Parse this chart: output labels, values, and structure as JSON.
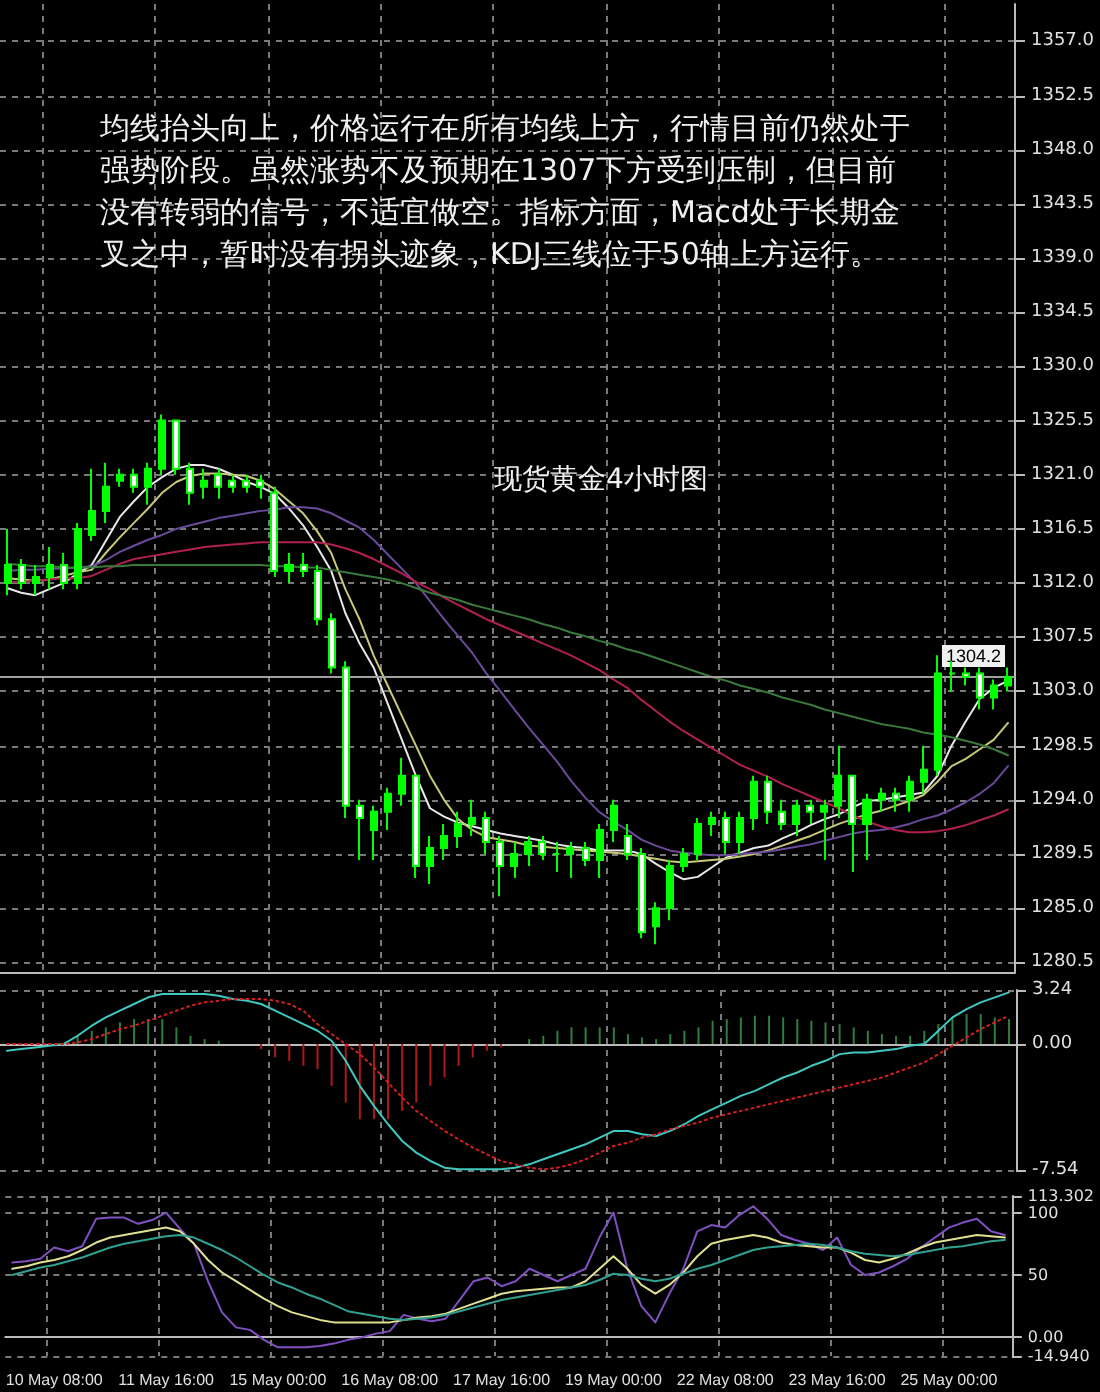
{
  "chart_data": [
    {
      "type": "candlestick",
      "title": "现货黄金4小时图",
      "annotations": [
        "均线抬头向上，价格运行在所有均线上方，行情目前仍然处于强势阶段。虽然涨势不及预期在1307下方受到压制，但目前没有转弱的信号，不适宜做空。指标方面，Macd处于长期金叉之中，暂时没有拐头迹象，KDJ三线位于50轴上方运行。"
      ],
      "categories": [
        null,
        null,
        null,
        null,
        null,
        null,
        null,
        null,
        null,
        null,
        null,
        null,
        null,
        null,
        null,
        null,
        null,
        null,
        null,
        null,
        null,
        null,
        null,
        null,
        null,
        null,
        null,
        null,
        null,
        null,
        null,
        null,
        null,
        null,
        null,
        null,
        null,
        null,
        null,
        null,
        null,
        null,
        null,
        null,
        null,
        null,
        null,
        null,
        null,
        null,
        null,
        null,
        null,
        null,
        null,
        null,
        null,
        null,
        null,
        null,
        null,
        null,
        null,
        null,
        null,
        null,
        null,
        null,
        null,
        null,
        null,
        null
      ],
      "color": "#00ff00",
      "ohlc": [
        [
          1312,
          1316.5,
          1311,
          1313.5
        ],
        [
          1313.5,
          1314,
          1311.5,
          1312
        ],
        [
          1312,
          1313.5,
          1311,
          1312.5
        ],
        [
          1312.5,
          1315,
          1311.5,
          1313.5
        ],
        [
          1313.5,
          1314.5,
          1311.5,
          1312
        ],
        [
          1312,
          1317,
          1311.5,
          1316.5
        ],
        [
          1316,
          1321.5,
          1315.5,
          1318
        ],
        [
          1318,
          1322,
          1317,
          1320
        ],
        [
          1320.5,
          1321.5,
          1320,
          1321
        ],
        [
          1321,
          1321.5,
          1319.5,
          1320
        ],
        [
          1320,
          1322,
          1318.5,
          1321.5
        ],
        [
          1321.5,
          1326,
          1321,
          1325.5
        ],
        [
          1325.5,
          1325.5,
          1321,
          1321.5
        ],
        [
          1321.5,
          1322,
          1318.5,
          1319.5
        ],
        [
          1320,
          1321.5,
          1319,
          1320.5
        ],
        [
          1321,
          1321.5,
          1319,
          1320
        ],
        [
          1320.5,
          1321,
          1319.5,
          1320
        ],
        [
          1320.5,
          1321,
          1319.5,
          1320
        ],
        [
          1320.5,
          1321,
          1319,
          1320
        ],
        [
          1319.5,
          1320,
          1312.5,
          1313
        ],
        [
          1313,
          1314.5,
          1312,
          1313.5
        ],
        [
          1313.5,
          1314.5,
          1312.5,
          1313
        ],
        [
          1313,
          1313.5,
          1308.5,
          1309
        ],
        [
          1309,
          1309.5,
          1304.5,
          1305
        ],
        [
          1305,
          1305.5,
          1292.5,
          1293.5
        ],
        [
          1293.5,
          1294,
          1289,
          1292.5
        ],
        [
          1291.5,
          1293.5,
          1289,
          1293
        ],
        [
          1293,
          1295,
          1291.5,
          1294.5
        ],
        [
          1294.5,
          1297.5,
          1293.5,
          1296
        ],
        [
          1296,
          1296,
          1287.5,
          1288.5
        ],
        [
          1288.5,
          1291,
          1287,
          1290
        ],
        [
          1290,
          1292,
          1289,
          1291
        ],
        [
          1291,
          1293,
          1290,
          1292
        ],
        [
          1292,
          1294,
          1291,
          1292.5
        ],
        [
          1292.5,
          1293,
          1289.5,
          1290.5
        ],
        [
          1290.5,
          1291,
          1286,
          1288.5
        ],
        [
          1288.5,
          1290.5,
          1287.5,
          1289.5
        ],
        [
          1289.5,
          1291,
          1288.5,
          1290.5
        ],
        [
          1290.5,
          1291,
          1289,
          1289.5
        ],
        [
          1289.5,
          1290.5,
          1288,
          1289.5
        ],
        [
          1289.5,
          1290.5,
          1287.5,
          1290
        ],
        [
          1290,
          1290.5,
          1288.5,
          1289
        ],
        [
          1289,
          1292,
          1287.5,
          1291.5
        ],
        [
          1291.5,
          1294,
          1290.5,
          1293.5
        ],
        [
          1291,
          1292,
          1289,
          1289.5
        ],
        [
          1289.5,
          1290,
          1282.5,
          1283
        ],
        [
          1283.5,
          1285.5,
          1282,
          1285
        ],
        [
          1285,
          1289,
          1284,
          1288.5
        ],
        [
          1288.5,
          1290,
          1288,
          1289.5
        ],
        [
          1289.5,
          1292.5,
          1289,
          1292
        ],
        [
          1292,
          1293,
          1291,
          1292.5
        ],
        [
          1292.5,
          1293,
          1289.5,
          1290.5
        ],
        [
          1290.5,
          1293,
          1289.5,
          1292.5
        ],
        [
          1292.5,
          1296,
          1291.5,
          1295.5
        ],
        [
          1295.5,
          1296,
          1292,
          1293
        ],
        [
          1293,
          1294,
          1291.5,
          1292
        ],
        [
          1292,
          1294,
          1291,
          1293.5
        ],
        [
          1293.5,
          1294,
          1292,
          1293
        ],
        [
          1293,
          1294,
          1289,
          1293.5
        ],
        [
          1293.5,
          1298.5,
          1292.5,
          1296
        ],
        [
          1296,
          1296,
          1288,
          1292
        ],
        [
          1292,
          1294.5,
          1289,
          1294
        ],
        [
          1294,
          1295,
          1293,
          1294.5
        ],
        [
          1294.5,
          1295,
          1293,
          1294
        ],
        [
          1294,
          1296,
          1293,
          1295.5
        ],
        [
          1295.5,
          1298.5,
          1294.5,
          1296.5
        ],
        [
          1296.5,
          1306,
          1296,
          1304.5
        ],
        [
          1304.5,
          1305.5,
          1303,
          1304.5
        ],
        [
          1304.5,
          1305,
          1303.5,
          1304.2
        ],
        [
          1304.5,
          1305,
          1301.5,
          1302.5
        ],
        [
          1302.5,
          1304,
          1301.5,
          1303.5
        ],
        [
          1303.5,
          1305,
          1303,
          1304.2
        ]
      ],
      "series": [
        {
          "type": "line",
          "color": "#e8e8e8",
          "values": [
            1311.6,
            1311.2,
            1311,
            1311.5,
            1312,
            1312.8,
            1313.5,
            1315.5,
            1317.5,
            1318.8,
            1320,
            1320.8,
            1321.5,
            1321.8,
            1321.8,
            1321.5,
            1321,
            1320.4,
            1320,
            1319.4,
            1318.2,
            1316.8,
            1315,
            1313,
            1309.5,
            1307,
            1305,
            1302,
            1299,
            1296,
            1293.3,
            1292.6,
            1292.1,
            1291.8,
            1291.5,
            1291.2,
            1291,
            1290.8,
            1290.6,
            1290.3,
            1290.1,
            1290,
            1289.8,
            1289.8,
            1289.8,
            1289.5,
            1288.7,
            1288,
            1287.4,
            1287.6,
            1288.4,
            1289.2,
            1289.6,
            1290,
            1290.2,
            1290.8,
            1291.3,
            1291.9,
            1292.4,
            1292.8,
            1293.4,
            1293.9,
            1294,
            1294.2,
            1294.4,
            1294.6,
            1296,
            1298.5,
            1300.5,
            1302.4,
            1303.3,
            1303.9
          ]
        },
        {
          "type": "line",
          "color": "#c8c878",
          "values": [
            1312.4,
            1312.3,
            1312.2,
            1312.3,
            1312.6,
            1312.9,
            1313.1,
            1314.5,
            1315.8,
            1317,
            1318.2,
            1319.5,
            1320.4,
            1320.9,
            1321.1,
            1321.1,
            1321,
            1320.9,
            1320.5,
            1319.8,
            1318.8,
            1317.8,
            1316.3,
            1314.5,
            1311.5,
            1309,
            1306,
            1303.5,
            1301,
            1298.5,
            1296,
            1294,
            1292.4,
            1291.5,
            1290.9,
            1290.7,
            1290.5,
            1290.2,
            1290.1,
            1290,
            1289.9,
            1289.8,
            1289.7,
            1289.6,
            1289.5,
            1289.3,
            1289.1,
            1288.9,
            1288.8,
            1288.9,
            1289,
            1289.1,
            1289.3,
            1289.5,
            1289.8,
            1290.2,
            1290.6,
            1291,
            1291.5,
            1292,
            1292.4,
            1292.8,
            1293.1,
            1293.5,
            1293.9,
            1294.4,
            1295.5,
            1296.8,
            1297.4,
            1298.2,
            1299,
            1300.4
          ]
        },
        {
          "type": "line",
          "color": "#6a4a9a",
          "values": [
            1313,
            1313.1,
            1313.1,
            1313.2,
            1313.2,
            1313.3,
            1313.4,
            1313.9,
            1314.6,
            1315.1,
            1315.6,
            1316,
            1316.5,
            1316.8,
            1317.1,
            1317.4,
            1317.6,
            1317.8,
            1318,
            1318.1,
            1318.3,
            1318.3,
            1318.2,
            1317.8,
            1317.2,
            1316.6,
            1315.6,
            1314.4,
            1313.2,
            1312,
            1310.5,
            1309,
            1307.6,
            1306.2,
            1304.5,
            1303,
            1301.5,
            1300,
            1298.6,
            1297.2,
            1295.6,
            1294.2,
            1293,
            1292.2,
            1291.5,
            1290.7,
            1290.2,
            1289.8,
            1289.6,
            1289.5,
            1289.4,
            1289.4,
            1289.5,
            1289.6,
            1289.7,
            1289.9,
            1290.1,
            1290.3,
            1290.6,
            1290.9,
            1291.2,
            1291.4,
            1291.5,
            1291.7,
            1292,
            1292.4,
            1292.7,
            1293.2,
            1293.8,
            1294.5,
            1295.4,
            1296.8
          ]
        },
        {
          "type": "line",
          "color": "#b02050",
          "values": [
            1312.1,
            1312.1,
            1312.2,
            1312.3,
            1312.4,
            1312.4,
            1312.6,
            1313.1,
            1313.6,
            1314,
            1314.2,
            1314.4,
            1314.6,
            1314.8,
            1315,
            1315.1,
            1315.2,
            1315.3,
            1315.4,
            1315.4,
            1315.4,
            1315.4,
            1315.4,
            1315.2,
            1314.9,
            1314.5,
            1314,
            1313.4,
            1312.8,
            1312.1,
            1311.5,
            1310.8,
            1310.2,
            1309.6,
            1309,
            1308.5,
            1308,
            1307.5,
            1307,
            1306.5,
            1306,
            1305.4,
            1304.8,
            1304,
            1303.3,
            1302.3,
            1301.4,
            1300.5,
            1299.7,
            1299,
            1298.3,
            1297.6,
            1296.9,
            1296.4,
            1295.9,
            1295.3,
            1294.8,
            1294.3,
            1293.8,
            1293.3,
            1292.7,
            1292.2,
            1291.8,
            1291.5,
            1291.3,
            1291.3,
            1291.4,
            1291.6,
            1291.9,
            1292.3,
            1292.7,
            1293.2
          ]
        },
        {
          "type": "line",
          "color": "#3a7a3a",
          "values": [
            1313.6,
            1313.5,
            1313.4,
            1313.4,
            1313.3,
            1313.3,
            1313.3,
            1313.4,
            1313.4,
            1313.5,
            1313.5,
            1313.5,
            1313.5,
            1313.5,
            1313.5,
            1313.5,
            1313.5,
            1313.5,
            1313.5,
            1313.4,
            1313.4,
            1313.3,
            1313.3,
            1313.1,
            1312.9,
            1312.7,
            1312.5,
            1312.3,
            1312,
            1311.6,
            1311.2,
            1310.9,
            1310.6,
            1310.2,
            1309.9,
            1309.6,
            1309.3,
            1309,
            1308.6,
            1308.3,
            1307.9,
            1307.6,
            1307.2,
            1306.9,
            1306.5,
            1306.2,
            1305.8,
            1305.4,
            1305,
            1304.6,
            1304.2,
            1303.9,
            1303.5,
            1303.2,
            1302.9,
            1302.5,
            1302.2,
            1301.9,
            1301.5,
            1301.2,
            1300.9,
            1300.6,
            1300.3,
            1300.1,
            1299.9,
            1299.6,
            1299.4,
            1299.2,
            1298.9,
            1298.6,
            1298.2,
            1297.7
          ]
        }
      ],
      "ylim": [
        1279.7,
        1360.1
      ],
      "yticks": [
        1280.5,
        {
          "value": 1285,
          "label": "1285.0"
        },
        1289.5,
        {
          "value": 1294,
          "label": "1294.0"
        },
        1298.5,
        {
          "value": 1303,
          "label": "1303.0"
        },
        1307.5,
        {
          "value": 1312,
          "label": "1312.0"
        },
        1316.5,
        {
          "value": 1321,
          "label": "1321.0"
        },
        1325.5,
        {
          "value": 1330,
          "label": "1330.0"
        },
        1334.5,
        {
          "value": 1339,
          "label": "1339.0"
        },
        1343.5,
        {
          "value": 1348,
          "label": "1348.0"
        },
        1352.5,
        {
          "value": 1357,
          "label": "1357.0"
        }
      ],
      "ref_lines": [
        {
          "axis": "y",
          "value": 1304.2,
          "label": "1304.2",
          "color": "#a0a0a0"
        }
      ],
      "grid": true,
      "marker": "none",
      "tick_labels": "y"
    },
    {
      "type": "line",
      "categories": [
        null,
        null,
        null,
        null,
        null,
        null,
        null,
        null,
        null,
        null,
        null,
        null,
        null,
        null,
        null,
        null,
        null,
        null,
        null,
        null,
        null,
        null,
        null,
        null,
        null,
        null,
        null,
        null,
        null,
        null,
        null,
        null,
        null,
        null,
        null,
        null,
        null,
        null,
        null,
        null,
        null,
        null,
        null,
        null,
        null,
        null,
        null,
        null,
        null,
        null,
        null,
        null,
        null,
        null,
        null,
        null,
        null,
        null,
        null,
        null,
        null,
        null,
        null,
        null,
        null,
        null,
        null,
        null,
        null,
        null,
        null,
        null
      ],
      "series": [
        {
          "type": "bar",
          "color": "#2e7d3e",
          "values": [
            null,
            null,
            null,
            null,
            null,
            0.5,
            0.8,
            1.0,
            1.3,
            1.5,
            1.5,
            1.5,
            1.0,
            0.5,
            0.3,
            0.2,
            null,
            null,
            -0.3,
            -0.8,
            -1.0,
            -1.3,
            -1.5,
            -2.5,
            -3.5,
            -4.5,
            -4.5,
            -4.5,
            -4.0,
            -3.5,
            -2.5,
            -2.0,
            -1.3,
            -0.8,
            -0.4,
            -0.2,
            null,
            0.3,
            0.5,
            0.8,
            1.0,
            1.0,
            1.0,
            1.0,
            0.6,
            0.4,
            0.3,
            0.6,
            0.8,
            1.0,
            1.4,
            1.5,
            1.6,
            1.7,
            1.7,
            1.6,
            1.5,
            1.4,
            1.3,
            1.2,
            1.0,
            0.8,
            0.6,
            0.5,
            0.5,
            0.8,
            1.2,
            1.6,
            1.8,
            1.8,
            1.6,
            1.5
          ],
          "colors": [
            null,
            null,
            null,
            null,
            null,
            "#2e7d3e",
            "#2e7d3e",
            "#2e7d3e",
            "#2e7d3e",
            "#2e7d3e",
            "#2e7d3e",
            "#2e7d3e",
            "#2e7d3e",
            "#2e7d3e",
            "#2e7d3e",
            "#2e7d3e",
            null,
            null,
            "#b01818",
            "#b01818",
            "#b01818",
            "#b01818",
            "#b01818",
            "#b01818",
            "#b01818",
            "#b01818",
            "#b01818",
            "#b01818",
            "#b01818",
            "#b01818",
            "#b01818",
            "#b01818",
            "#b01818",
            "#b01818",
            "#b01818",
            "#b01818",
            null,
            "#2e7d3e",
            "#2e7d3e",
            "#2e7d3e",
            "#2e7d3e",
            "#2e7d3e",
            "#2e7d3e",
            "#2e7d3e",
            "#2e7d3e",
            "#2e7d3e",
            "#2e7d3e",
            "#2e7d3e",
            "#2e7d3e",
            "#2e7d3e",
            "#2e7d3e",
            "#2e7d3e",
            "#2e7d3e",
            "#2e7d3e",
            "#2e7d3e",
            "#2e7d3e",
            "#2e7d3e",
            "#2e7d3e",
            "#2e7d3e",
            "#2e7d3e",
            "#2e7d3e",
            "#2e7d3e",
            "#2e7d3e",
            "#2e7d3e",
            "#2e7d3e",
            "#2e7d3e",
            "#2e7d3e",
            "#2e7d3e",
            "#2e7d3e",
            "#2e7d3e",
            "#2e7d3e",
            "#2e7d3e"
          ]
        },
        {
          "color": "#40c8c0",
          "values": [
            -0.4,
            -0.3,
            -0.2,
            -0.1,
            0,
            0.5,
            1.1,
            1.6,
            2.0,
            2.4,
            2.8,
            3.0,
            3.0,
            3.0,
            3.0,
            2.9,
            2.7,
            2.6,
            2.4,
            2.0,
            1.6,
            1.2,
            0.8,
            0.2,
            -1.0,
            -2.5,
            -3.7,
            -4.8,
            -5.8,
            -6.5,
            -7.0,
            -7.4,
            -7.5,
            -7.5,
            -7.5,
            -7.5,
            -7.4,
            -7.2,
            -6.9,
            -6.6,
            -6.3,
            -6.0,
            -5.6,
            -5.2,
            -5.2,
            -5.4,
            -5.5,
            -5.2,
            -4.8,
            -4.3,
            -3.9,
            -3.5,
            -3.1,
            -2.8,
            -2.4,
            -2.0,
            -1.7,
            -1.3,
            -1.0,
            -0.6,
            -0.5,
            -0.5,
            -0.4,
            -0.3,
            -0.1,
            0,
            0.8,
            1.6,
            2.1,
            2.5,
            2.8,
            3.1
          ]
        },
        {
          "color": "#d02020",
          "line_style": "dotted",
          "values": [
            0,
            0,
            0,
            0,
            0,
            0.1,
            0.3,
            0.6,
            0.9,
            1.1,
            1.4,
            1.7,
            2.0,
            2.3,
            2.5,
            2.6,
            2.7,
            2.7,
            2.7,
            2.6,
            2.4,
            2.0,
            1.2,
            0.6,
            0,
            -0.6,
            -1.4,
            -2.3,
            -3.2,
            -4.0,
            -4.6,
            -5.2,
            -5.7,
            -6.2,
            -6.6,
            -7.0,
            -7.2,
            -7.4,
            -7.5,
            -7.4,
            -7.2,
            -6.9,
            -6.5,
            -6.1,
            -5.9,
            -5.6,
            -5.4,
            -5.1,
            -4.9,
            -4.7,
            -4.4,
            -4.2,
            -4.0,
            -3.8,
            -3.6,
            -3.4,
            -3.2,
            -3.0,
            -2.8,
            -2.6,
            -2.4,
            -2.2,
            -2.0,
            -1.7,
            -1.4,
            -1.1,
            -0.6,
            -0.1,
            0.4,
            0.9,
            1.3,
            1.7
          ]
        }
      ],
      "ylim": [
        -7.54,
        3.24
      ],
      "yticks": [
        -7.54,
        {
          "value": 0,
          "label": "0.00"
        },
        3.24
      ],
      "grid": true,
      "marker": "none",
      "tick_labels": "y"
    },
    {
      "type": "line",
      "categories": [
        null,
        null,
        null,
        "10 May 08:00",
        null,
        null,
        null,
        null,
        null,
        null,
        null,
        "11 May 16:00",
        null,
        null,
        null,
        null,
        null,
        null,
        null,
        "15 May 00:00",
        null,
        null,
        null,
        null,
        null,
        null,
        null,
        "16 May 08:00",
        null,
        null,
        null,
        null,
        null,
        null,
        null,
        "17 May 16:00",
        null,
        null,
        null,
        null,
        null,
        null,
        null,
        "19 May 00:00",
        null,
        null,
        null,
        null,
        null,
        null,
        null,
        "22 May 08:00",
        null,
        null,
        null,
        null,
        null,
        null,
        null,
        "23 May 16:00",
        null,
        null,
        null,
        null,
        null,
        null,
        null,
        "25 May 00:00",
        null,
        null,
        null,
        null
      ],
      "series": [
        {
          "color": "#8050c0",
          "values": [
            60,
            61,
            63,
            72,
            69,
            73,
            95,
            96,
            96,
            91,
            94,
            100,
            87,
            75,
            45,
            20,
            8,
            6,
            -2,
            -8,
            -8,
            -8,
            -7,
            -5,
            -2,
            0,
            3,
            5,
            18,
            15,
            13,
            15,
            30,
            45,
            48,
            41,
            45,
            55,
            50,
            45,
            50,
            55,
            80,
            100,
            55,
            25,
            12,
            35,
            55,
            85,
            90,
            88,
            98,
            105,
            95,
            82,
            78,
            75,
            70,
            80,
            58,
            50,
            52,
            57,
            63,
            72,
            80,
            88,
            92,
            95,
            85,
            82
          ]
        },
        {
          "color": "#e0e090",
          "values": [
            55,
            57,
            60,
            62,
            65,
            70,
            76,
            80,
            82,
            84,
            86,
            88,
            85,
            75,
            62,
            52,
            45,
            38,
            31,
            25,
            20,
            17,
            14,
            12,
            12,
            12,
            12,
            12,
            14,
            16,
            17,
            19,
            23,
            27,
            31,
            35,
            37,
            38,
            39,
            40,
            40,
            45,
            55,
            65,
            55,
            42,
            35,
            42,
            52,
            65,
            75,
            78,
            80,
            82,
            80,
            76,
            74,
            73,
            72,
            72,
            68,
            62,
            60,
            63,
            67,
            72,
            76,
            78,
            80,
            82,
            81,
            80
          ]
        },
        {
          "color": "#30a090",
          "values": [
            50,
            53,
            56,
            58,
            61,
            64,
            68,
            72,
            75,
            77,
            79,
            81,
            82,
            80,
            75,
            70,
            64,
            57,
            50,
            44,
            40,
            35,
            31,
            26,
            21,
            19,
            17,
            15,
            14,
            15,
            16,
            18,
            21,
            24,
            27,
            30,
            32,
            34,
            36,
            38,
            40,
            42,
            46,
            51,
            50,
            47,
            45,
            47,
            51,
            55,
            58,
            62,
            66,
            70,
            72,
            73,
            74,
            75,
            74,
            72,
            69,
            67,
            66,
            65,
            66,
            68,
            70,
            72,
            73,
            75,
            77,
            78
          ]
        }
      ],
      "ylim": [
        -14.94,
        113.302
      ],
      "yticks": [
        {
          "value": -14.94,
          "label": "-14.940"
        },
        {
          "value": 0,
          "label": "0.00"
        },
        50,
        100,
        113.302
      ],
      "grid": true,
      "marker": "none"
    }
  ]
}
